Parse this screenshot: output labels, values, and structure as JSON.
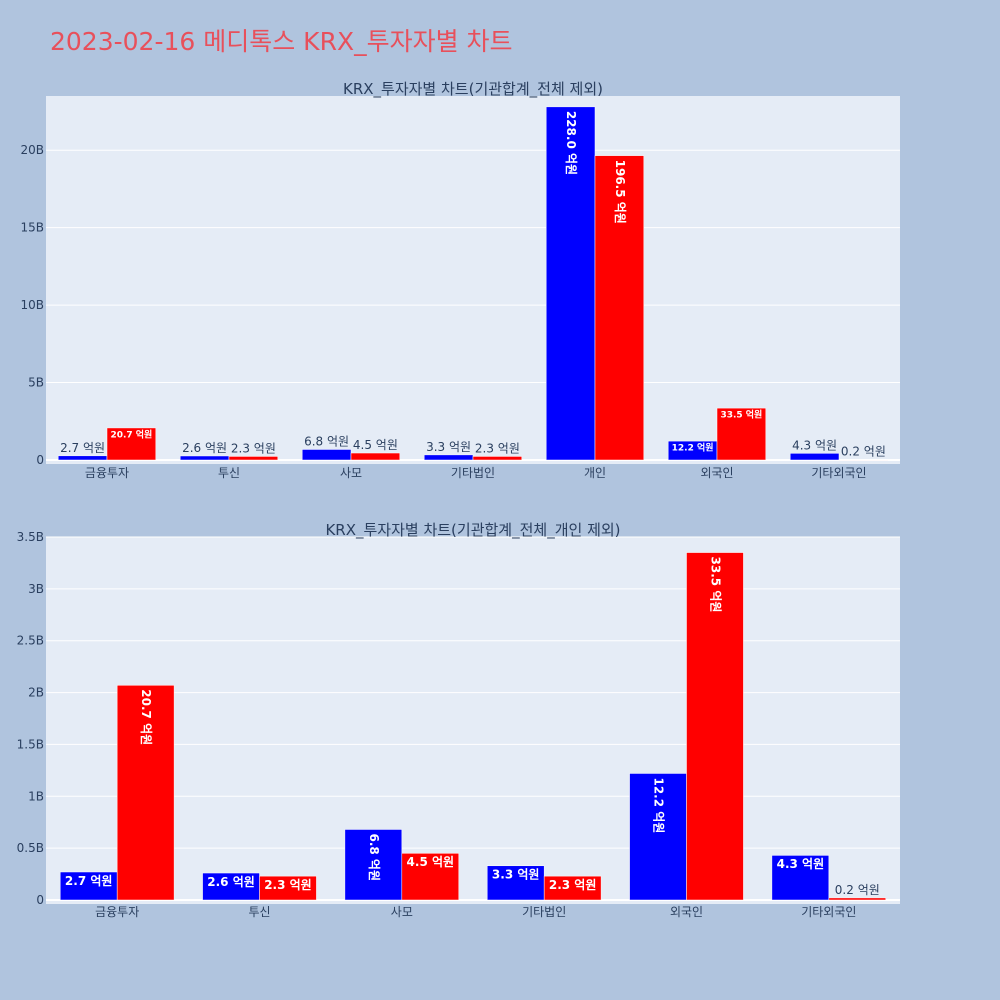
{
  "page": {
    "title": "2023-02-16 메디톡스 KRX_투자자별 차트"
  },
  "colors": {
    "buy": "#0000ff",
    "sell": "#ff0000",
    "title": "#e8505b",
    "plot_bg": "#e5ecf6",
    "page_bg": "#b0c4de"
  },
  "chart_data": [
    {
      "type": "bar",
      "title": "KRX_투자자별 차트(기관합계_전체 제외)",
      "categories": [
        "금융투자",
        "투신",
        "사모",
        "기타법인",
        "개인",
        "외국인",
        "기타외국인"
      ],
      "series": [
        {
          "values": [
            0.27,
            0.26,
            0.68,
            0.33,
            22.8,
            1.22,
            0.43
          ],
          "labels": [
            "2.7 억원",
            "2.6 억원",
            "6.8 억원",
            "3.3 억원",
            "228.0 억원",
            "12.2 억원",
            "4.3 억원"
          ]
        },
        {
          "values": [
            2.07,
            0.23,
            0.45,
            0.23,
            19.65,
            3.35,
            0.02
          ],
          "labels": [
            "20.7 억원",
            "2.3 억원",
            "4.5 억원",
            "2.3 억원",
            "196.5 억원",
            "33.5 억원",
            "0.2 억원"
          ]
        }
      ],
      "yunit": "B",
      "ylim": [
        0,
        23.5
      ],
      "yticks": [
        0,
        5,
        10,
        15,
        20
      ],
      "ytick_labels": [
        "0",
        "5B",
        "10B",
        "15B",
        "20B"
      ],
      "grid": true,
      "legend": "none"
    },
    {
      "type": "bar",
      "title": "KRX_투자자별 차트(기관합계_전체_개인 제외)",
      "categories": [
        "금융투자",
        "투신",
        "사모",
        "기타법인",
        "외국인",
        "기타외국인"
      ],
      "series": [
        {
          "values": [
            0.27,
            0.26,
            0.68,
            0.33,
            1.22,
            0.43
          ],
          "labels": [
            "2.7 억원",
            "2.6 억원",
            "6.8 억원",
            "3.3 억원",
            "12.2 억원",
            "4.3 억원"
          ]
        },
        {
          "values": [
            2.07,
            0.23,
            0.45,
            0.23,
            3.35,
            0.02
          ],
          "labels": [
            "20.7 억원",
            "2.3 억원",
            "4.5 억원",
            "2.3 억원",
            "33.5 억원",
            "0.2 억원"
          ]
        }
      ],
      "yunit": "B",
      "ylim": [
        0,
        3.5
      ],
      "yticks": [
        0,
        0.5,
        1,
        1.5,
        2,
        2.5,
        3,
        3.5
      ],
      "ytick_labels": [
        "0",
        "0.5B",
        "1B",
        "1.5B",
        "2B",
        "2.5B",
        "3B",
        "3.5B"
      ],
      "grid": true,
      "legend": "none"
    }
  ]
}
